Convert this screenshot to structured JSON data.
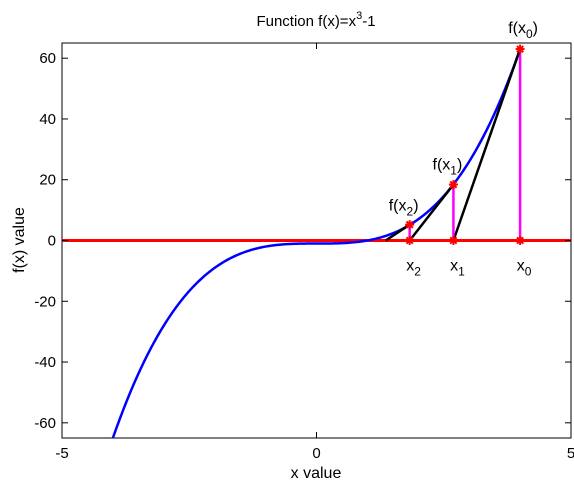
{
  "chart_data": {
    "type": "line",
    "title": "Function f(x)=x",
    "title_exponent": "3",
    "title_suffix": "-1",
    "xlabel": "x value",
    "ylabel": "f(x) value",
    "xlim": [
      -5,
      5
    ],
    "ylim": [
      -65,
      65
    ],
    "xticks": [
      -5,
      0,
      5
    ],
    "yticks": [
      -60,
      -40,
      -20,
      0,
      20,
      40,
      60
    ],
    "grid": false,
    "curve": {
      "function": "x^3 - 1",
      "x_range": [
        -4.02,
        4.0
      ],
      "color": "#0000ff"
    },
    "zero_line": {
      "y": 0,
      "color": "#ff0000"
    },
    "iterates": [
      {
        "x": 4.0,
        "fx": 63.0,
        "label_point": "f(x",
        "label_sub": "0",
        "label_close": ")",
        "axis_label": "x",
        "axis_sub": "0"
      },
      {
        "x": 2.69,
        "fx": 18.4,
        "label_point": "f(x",
        "label_sub": "1",
        "label_close": ")",
        "axis_label": "x",
        "axis_sub": "1"
      },
      {
        "x": 1.83,
        "fx": 5.2,
        "label_point": "f(x",
        "label_sub": "2",
        "label_close": ")",
        "axis_label": "x",
        "axis_sub": "2"
      }
    ],
    "tangent_end_x": 1.36,
    "colors": {
      "curve": "#0000ff",
      "zero_line": "#ff0000",
      "tangent": "#000000",
      "vertical": "#ff00ff",
      "marker": "#ff0000"
    }
  }
}
